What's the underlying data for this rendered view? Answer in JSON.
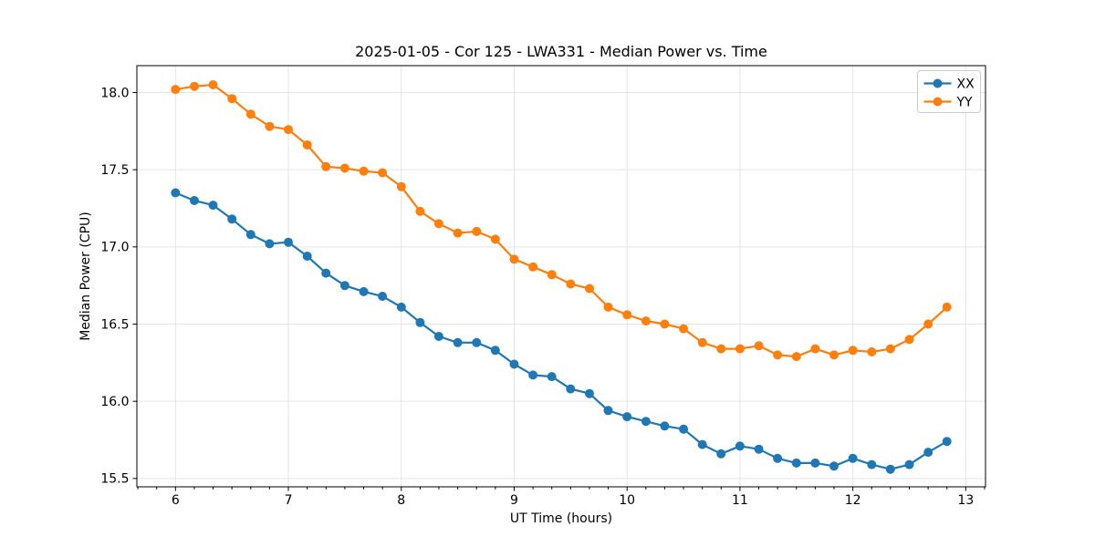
{
  "chart_data": {
    "type": "line",
    "title": "2025-01-05 - Cor 125 - LWA331 - Median Power vs. Time",
    "xlabel": "UT Time (hours)",
    "ylabel": "Median Power (CPU)",
    "xlim": [
      5.658,
      13.175
    ],
    "ylim": [
      15.446,
      18.174
    ],
    "xticks": [
      6,
      7,
      8,
      9,
      10,
      11,
      12,
      13
    ],
    "yticks": [
      15.5,
      16.0,
      16.5,
      17.0,
      17.5,
      18.0
    ],
    "x_minor_interval": 0.166667,
    "grid": true,
    "grid_color": "#e4e4e4",
    "legend_position": "upper right",
    "x": [
      6.0,
      6.167,
      6.333,
      6.5,
      6.667,
      6.833,
      7.0,
      7.167,
      7.333,
      7.5,
      7.667,
      7.833,
      8.0,
      8.167,
      8.333,
      8.5,
      8.667,
      8.833,
      9.0,
      9.167,
      9.333,
      9.5,
      9.667,
      9.833,
      10.0,
      10.167,
      10.333,
      10.5,
      10.667,
      10.833,
      11.0,
      11.167,
      11.333,
      11.5,
      11.667,
      11.833,
      12.0,
      12.167,
      12.333,
      12.5,
      12.667,
      12.833
    ],
    "series": [
      {
        "name": "XX",
        "color": "#1f77b4",
        "values": [
          17.35,
          17.3,
          17.27,
          17.18,
          17.08,
          17.02,
          17.03,
          16.94,
          16.83,
          16.75,
          16.71,
          16.68,
          16.61,
          16.51,
          16.42,
          16.38,
          16.38,
          16.33,
          16.24,
          16.17,
          16.16,
          16.08,
          16.05,
          15.94,
          15.9,
          15.87,
          15.84,
          15.82,
          15.72,
          15.66,
          15.71,
          15.69,
          15.63,
          15.6,
          15.6,
          15.58,
          15.63,
          15.59,
          15.56,
          15.59,
          15.67,
          15.74
        ]
      },
      {
        "name": "YY",
        "color": "#ff7f0e",
        "values": [
          18.02,
          18.04,
          18.05,
          17.96,
          17.86,
          17.78,
          17.76,
          17.66,
          17.52,
          17.51,
          17.49,
          17.48,
          17.39,
          17.23,
          17.15,
          17.09,
          17.1,
          17.05,
          16.92,
          16.87,
          16.82,
          16.76,
          16.73,
          16.61,
          16.56,
          16.52,
          16.5,
          16.47,
          16.38,
          16.34,
          16.34,
          16.36,
          16.3,
          16.29,
          16.34,
          16.3,
          16.33,
          16.32,
          16.34,
          16.4,
          16.5,
          16.61
        ]
      }
    ]
  }
}
